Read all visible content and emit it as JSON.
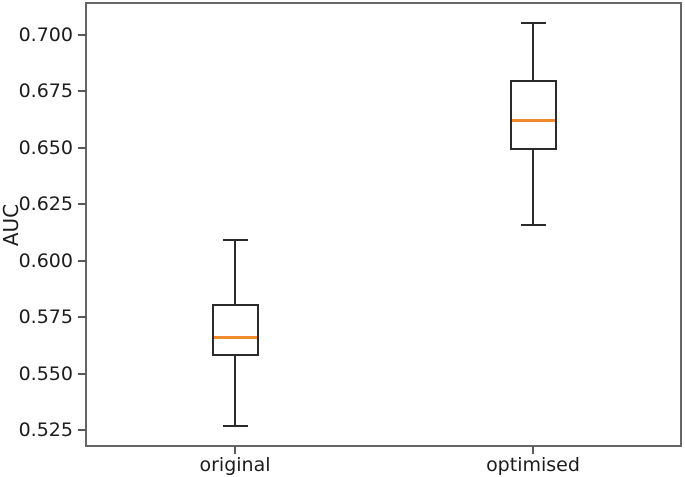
{
  "chart_data": {
    "type": "boxplot",
    "title": "",
    "xlabel": "",
    "ylabel": "AUC",
    "categories": [
      "original",
      "optimised"
    ],
    "series": [
      {
        "name": "original",
        "whisker_low": 0.527,
        "q1": 0.558,
        "median": 0.566,
        "q3": 0.581,
        "whisker_high": 0.609
      },
      {
        "name": "optimised",
        "whisker_low": 0.616,
        "q1": 0.649,
        "median": 0.662,
        "q3": 0.68,
        "whisker_high": 0.705
      }
    ],
    "ytick_labels": [
      "0.525",
      "0.550",
      "0.575",
      "0.600",
      "0.625",
      "0.650",
      "0.675",
      "0.700"
    ],
    "ylim": [
      0.518,
      0.714
    ],
    "grid": false,
    "legend": "none",
    "colors": {
      "median": "#ef8b2d",
      "box_edge": "#2b2b2b",
      "whisker": "#2b2b2b",
      "spine": "#666666",
      "tick_text": "#1c1c1c",
      "background": "#ffffff"
    }
  }
}
